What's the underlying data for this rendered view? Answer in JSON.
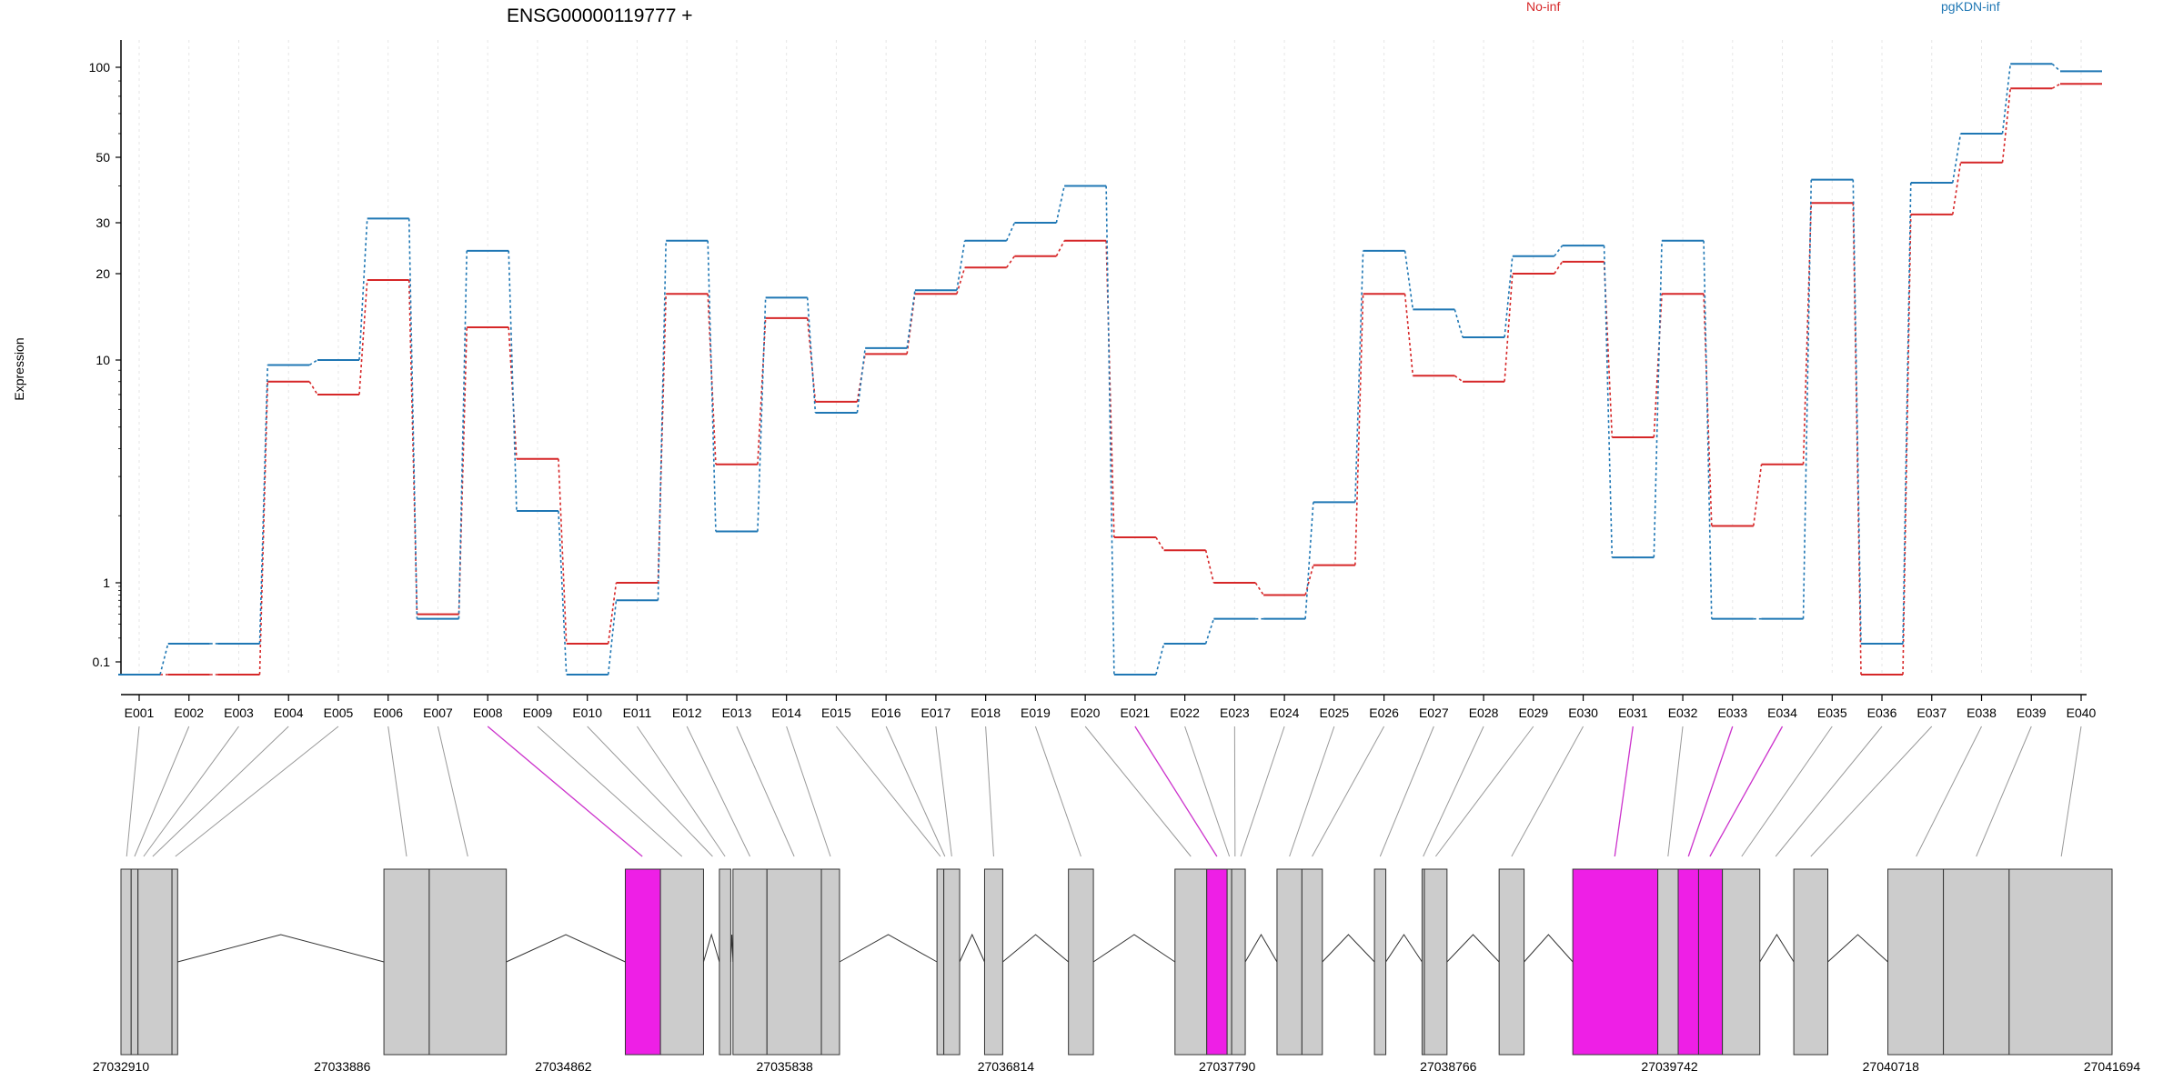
{
  "title": "ENSG00000119777 +",
  "colors": {
    "no_inf": "#d62728",
    "pgkdn_inf": "#1f77b4",
    "exon_fill": "#cccccc",
    "exon_highlight": "#ee1fe6"
  },
  "chart_data": {
    "type": "line",
    "title": "ENSG00000119777 +",
    "ylabel": "Expression",
    "yscale": "log",
    "ylim": [
      0.07,
      120
    ],
    "yticks": [
      0.1,
      1,
      10,
      20,
      30,
      50,
      100
    ],
    "ytick_labels": [
      "0.1",
      "1",
      "10",
      "20",
      "30",
      "50",
      "100"
    ],
    "grid": "vertical light dashed",
    "legend_placement": "top-right",
    "categories": [
      "E001",
      "E002",
      "E003",
      "E004",
      "E005",
      "E006",
      "E007",
      "E008",
      "E009",
      "E010",
      "E011",
      "E012",
      "E013",
      "E014",
      "E015",
      "E016",
      "E017",
      "E018",
      "E019",
      "E020",
      "E021",
      "E022",
      "E023",
      "E024",
      "E025",
      "E026",
      "E027",
      "E028",
      "E029",
      "E030",
      "E031",
      "E032",
      "E033",
      "E034",
      "E035",
      "E036",
      "E037",
      "E038",
      "E039",
      "E040"
    ],
    "series": [
      {
        "name": "No-inf",
        "color": "#d62728",
        "values": [
          0.07,
          0.07,
          0.07,
          8,
          7,
          19,
          0.4,
          13,
          3.6,
          0.17,
          1.0,
          17,
          3.4,
          14,
          6.5,
          10.5,
          17,
          21,
          23,
          26,
          1.6,
          1.4,
          1.0,
          0.7,
          1.2,
          17,
          8.5,
          8,
          20,
          22,
          4.5,
          17,
          1.8,
          3.4,
          35,
          0.07,
          32,
          48,
          85,
          88
        ]
      },
      {
        "name": "pgKDN-inf",
        "color": "#1f77b4",
        "values": [
          0.07,
          0.17,
          0.17,
          9.5,
          10,
          31,
          0.35,
          24,
          2.1,
          0.07,
          0.6,
          26,
          1.7,
          16.5,
          5.8,
          11,
          17.5,
          26,
          30,
          40,
          0.07,
          0.17,
          0.35,
          0.35,
          2.3,
          24,
          15,
          12,
          23,
          25,
          1.3,
          26,
          0.35,
          0.35,
          42,
          0.17,
          41,
          60,
          105,
          97
        ]
      }
    ]
  },
  "gene_model": {
    "xticks": [
      "27032910",
      "27033886",
      "27034862",
      "27035838",
      "27036814",
      "27037790",
      "27038766",
      "27039742",
      "27040718",
      "27041694"
    ],
    "region": [
      27032910,
      27041694
    ],
    "exons": [
      {
        "start": 27032910,
        "end": 27032955,
        "highlight": false
      },
      {
        "start": 27032955,
        "end": 27032985,
        "highlight": false
      },
      {
        "start": 27032985,
        "end": 27033135,
        "highlight": false
      },
      {
        "start": 27033135,
        "end": 27033160,
        "highlight": false
      },
      {
        "start": 27034070,
        "end": 27034270,
        "highlight": false
      },
      {
        "start": 27034270,
        "end": 27034610,
        "highlight": false
      },
      {
        "start": 27035135,
        "end": 27035290,
        "highlight": true
      },
      {
        "start": 27035290,
        "end": 27035480,
        "highlight": false
      },
      {
        "start": 27035550,
        "end": 27035600,
        "highlight": false
      },
      {
        "start": 27035610,
        "end": 27035760,
        "highlight": false
      },
      {
        "start": 27035760,
        "end": 27036000,
        "highlight": false
      },
      {
        "start": 27036000,
        "end": 27036080,
        "highlight": false
      },
      {
        "start": 27036510,
        "end": 27036540,
        "highlight": false
      },
      {
        "start": 27036540,
        "end": 27036610,
        "highlight": false
      },
      {
        "start": 27036720,
        "end": 27036800,
        "highlight": false
      },
      {
        "start": 27037090,
        "end": 27037200,
        "highlight": false
      },
      {
        "start": 27037560,
        "end": 27037700,
        "highlight": false
      },
      {
        "start": 27037700,
        "end": 27037790,
        "highlight": true
      },
      {
        "start": 27037790,
        "end": 27037810,
        "highlight": false
      },
      {
        "start": 27037810,
        "end": 27037870,
        "highlight": false
      },
      {
        "start": 27038010,
        "end": 27038120,
        "highlight": false
      },
      {
        "start": 27038120,
        "end": 27038210,
        "highlight": false
      },
      {
        "start": 27038440,
        "end": 27038490,
        "highlight": false
      },
      {
        "start": 27038650,
        "end": 27038660,
        "highlight": false
      },
      {
        "start": 27038660,
        "end": 27038760,
        "highlight": false
      },
      {
        "start": 27038990,
        "end": 27039100,
        "highlight": false
      },
      {
        "start": 27039315,
        "end": 27039690,
        "highlight": true
      },
      {
        "start": 27039690,
        "end": 27039780,
        "highlight": false
      },
      {
        "start": 27039780,
        "end": 27039870,
        "highlight": true
      },
      {
        "start": 27039870,
        "end": 27039975,
        "highlight": true
      },
      {
        "start": 27039975,
        "end": 27040140,
        "highlight": false
      },
      {
        "start": 27040290,
        "end": 27040440,
        "highlight": false
      },
      {
        "start": 27040705,
        "end": 27040950,
        "highlight": false
      },
      {
        "start": 27040950,
        "end": 27041240,
        "highlight": false
      },
      {
        "start": 27041240,
        "end": 27041694,
        "highlight": false
      }
    ],
    "introns": [
      [
        27033160,
        27034070
      ],
      [
        27034610,
        27035135
      ],
      [
        27035480,
        27035550
      ],
      [
        27035600,
        27035610
      ],
      [
        27036080,
        27036510
      ],
      [
        27036610,
        27036720
      ],
      [
        27036800,
        27037090
      ],
      [
        27037200,
        27037560
      ],
      [
        27037870,
        27038010
      ],
      [
        27038210,
        27038440
      ],
      [
        27038490,
        27038650
      ],
      [
        27038760,
        27038990
      ],
      [
        27039100,
        27039315
      ],
      [
        27040140,
        27040290
      ],
      [
        27040440,
        27040705
      ]
    ],
    "mapping": [
      {
        "exon": "E001",
        "pos": 27032935,
        "highlight": false
      },
      {
        "exon": "E002",
        "pos": 27032970,
        "highlight": false
      },
      {
        "exon": "E003",
        "pos": 27033010,
        "highlight": false
      },
      {
        "exon": "E004",
        "pos": 27033050,
        "highlight": false
      },
      {
        "exon": "E005",
        "pos": 27033150,
        "highlight": false
      },
      {
        "exon": "E006",
        "pos": 27034170,
        "highlight": false
      },
      {
        "exon": "E007",
        "pos": 27034440,
        "highlight": false
      },
      {
        "exon": "E008",
        "pos": 27035210,
        "highlight": true
      },
      {
        "exon": "E009",
        "pos": 27035385,
        "highlight": false
      },
      {
        "exon": "E010",
        "pos": 27035520,
        "highlight": false
      },
      {
        "exon": "E011",
        "pos": 27035575,
        "highlight": false
      },
      {
        "exon": "E012",
        "pos": 27035685,
        "highlight": false
      },
      {
        "exon": "E013",
        "pos": 27035880,
        "highlight": false
      },
      {
        "exon": "E014",
        "pos": 27036040,
        "highlight": false
      },
      {
        "exon": "E015",
        "pos": 27036525,
        "highlight": false
      },
      {
        "exon": "E016",
        "pos": 27036545,
        "highlight": false
      },
      {
        "exon": "E017",
        "pos": 27036575,
        "highlight": false
      },
      {
        "exon": "E018",
        "pos": 27036760,
        "highlight": false
      },
      {
        "exon": "E019",
        "pos": 27037145,
        "highlight": false
      },
      {
        "exon": "E020",
        "pos": 27037630,
        "highlight": false
      },
      {
        "exon": "E021",
        "pos": 27037745,
        "highlight": true
      },
      {
        "exon": "E022",
        "pos": 27037800,
        "highlight": false
      },
      {
        "exon": "E023",
        "pos": 27037825,
        "highlight": false
      },
      {
        "exon": "E024",
        "pos": 27037850,
        "highlight": false
      },
      {
        "exon": "E025",
        "pos": 27038065,
        "highlight": false
      },
      {
        "exon": "E026",
        "pos": 27038165,
        "highlight": false
      },
      {
        "exon": "E027",
        "pos": 27038465,
        "highlight": false
      },
      {
        "exon": "E028",
        "pos": 27038655,
        "highlight": false
      },
      {
        "exon": "E029",
        "pos": 27038710,
        "highlight": false
      },
      {
        "exon": "E030",
        "pos": 27039045,
        "highlight": false
      },
      {
        "exon": "E031",
        "pos": 27039500,
        "highlight": true
      },
      {
        "exon": "E032",
        "pos": 27039735,
        "highlight": false
      },
      {
        "exon": "E033",
        "pos": 27039825,
        "highlight": true
      },
      {
        "exon": "E034",
        "pos": 27039920,
        "highlight": true
      },
      {
        "exon": "E035",
        "pos": 27040060,
        "highlight": false
      },
      {
        "exon": "E036",
        "pos": 27040210,
        "highlight": false
      },
      {
        "exon": "E037",
        "pos": 27040365,
        "highlight": false
      },
      {
        "exon": "E038",
        "pos": 27040830,
        "highlight": false
      },
      {
        "exon": "E039",
        "pos": 27041095,
        "highlight": false
      },
      {
        "exon": "E040",
        "pos": 27041470,
        "highlight": false
      }
    ]
  }
}
